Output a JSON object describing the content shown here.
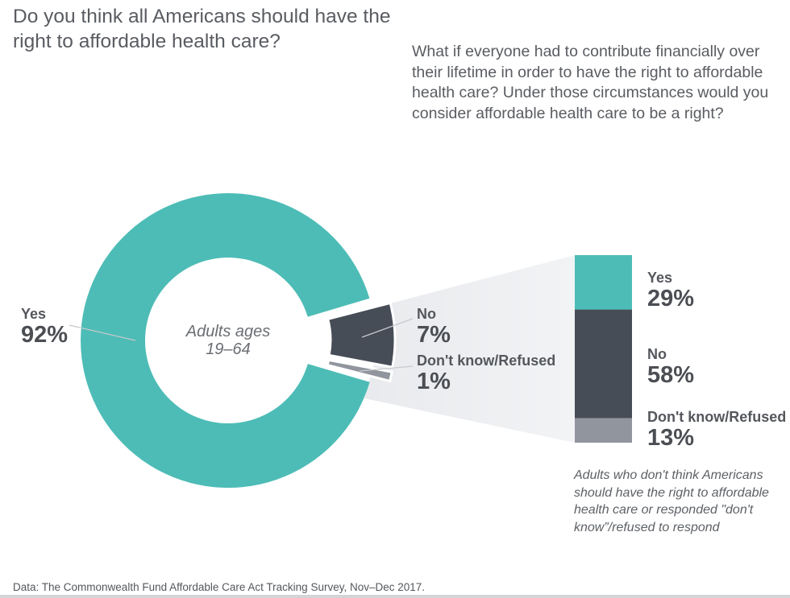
{
  "chart_data": {
    "type": "pie",
    "title": "Do you think all Americans should have the right to affordable health care?",
    "followup_question": "What if everyone had to contribute financially over their lifetime in order to have the right to affordable health care? Under those circumstances would you consider affordable health care to be a right?",
    "source": "Data: The Commonwealth Fund Affordable Care Act Tracking Survey, Nov–Dec 2017.",
    "donut": {
      "center_label": [
        "Adults ages",
        "19–64"
      ],
      "slices": [
        {
          "label": "No",
          "value": 7,
          "display": "7%",
          "color": "#474d57",
          "exploded": true
        },
        {
          "label": "Don't know/Refused",
          "value": 1,
          "display": "1%",
          "color": "#90959e",
          "exploded": true
        },
        {
          "label": "Yes",
          "value": 92,
          "display": "92%",
          "color": "#4dbcb6",
          "exploded": false
        }
      ]
    },
    "breakout_bar": {
      "segments": [
        {
          "label": "Yes",
          "value": 29,
          "display": "29%",
          "color": "#4dbcb6"
        },
        {
          "label": "No",
          "value": 58,
          "display": "58%",
          "color": "#474d57"
        },
        {
          "label": "Don't know/Refused",
          "value": 13,
          "display": "13%",
          "color": "#90959e"
        }
      ],
      "note": "Adults who don't think Americans should have the right to affordable health care or responded \"don't know”/refused to respond"
    },
    "colors": {
      "yes": "#4dbcb6",
      "no": "#474d57",
      "dont_know": "#90959e",
      "funnel_left": "#e8eaed",
      "funnel_right": "#f2f3f5",
      "leader_line": "#c7c9cc"
    }
  }
}
